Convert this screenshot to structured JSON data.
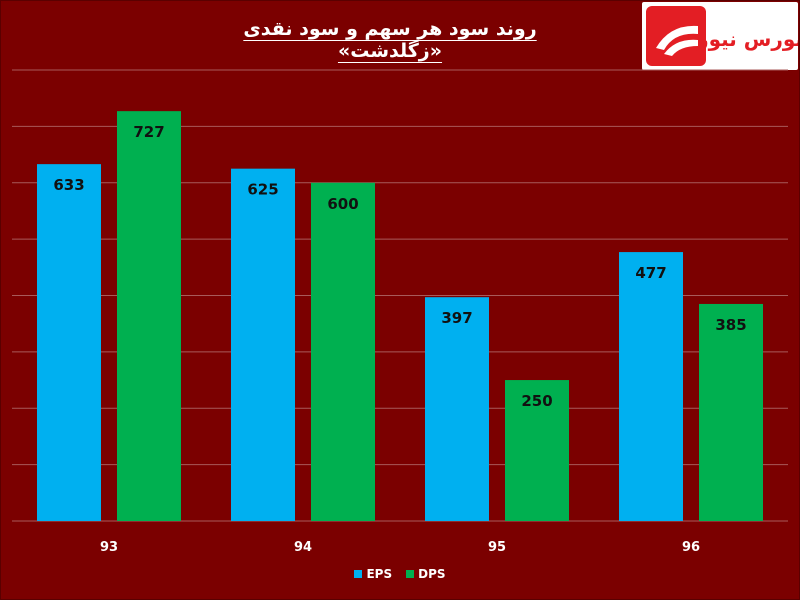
{
  "colors": {
    "background": "#7b0000",
    "eps": "#00b0f0",
    "dps": "#00b050",
    "grid": "#a85a5a",
    "logo_red": "#e31e24"
  },
  "logo": {
    "text": "بورس نیوز",
    "icon": "bourse-news-logo-icon"
  },
  "chart_data": {
    "type": "bar",
    "title": "روند سود هر سهم و سود نقدی «زگلدشت»",
    "categories": [
      "93",
      "94",
      "95",
      "96"
    ],
    "series": [
      {
        "name": "EPS",
        "values": [
          633,
          625,
          397,
          477
        ]
      },
      {
        "name": "DPS",
        "values": [
          727,
          600,
          250,
          385
        ]
      }
    ],
    "ylim": [
      0,
      800
    ],
    "grid": true,
    "legend": "bottom",
    "show_y_tick_labels": false
  }
}
